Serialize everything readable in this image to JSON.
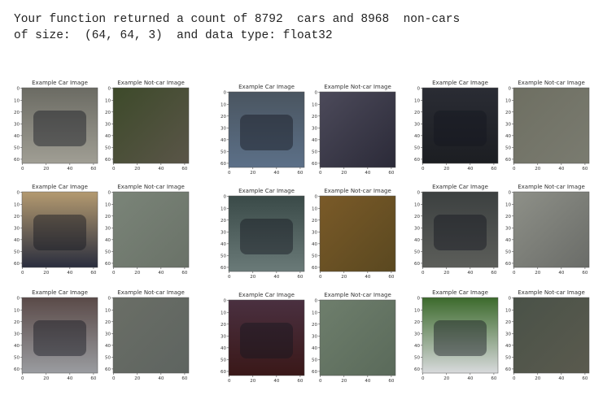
{
  "output": {
    "lines": [
      "Your function returned a count of 8792  cars and 8968  non-cars",
      "of size:  (64, 64, 3)  and data type: float32"
    ]
  },
  "axes": {
    "yticks": [
      "0",
      "10",
      "20",
      "30",
      "40",
      "50",
      "60"
    ],
    "xticks": [
      "0",
      "20",
      "40",
      "60"
    ]
  },
  "panels": [
    {
      "title": "Example Car Image"
    },
    {
      "title": "Example Not-car Image"
    },
    {
      "title": "Example Car Image"
    },
    {
      "title": "Example Not-car Image"
    },
    {
      "title": "Example Car Image"
    },
    {
      "title": "Example Not-car Image"
    },
    {
      "title": "Example Car Image"
    },
    {
      "title": "Example Not-car Image"
    },
    {
      "title": "Example Car Image"
    },
    {
      "title": "Example Not-car Image"
    },
    {
      "title": "Example Car Image"
    },
    {
      "title": "Example Not-car Image"
    },
    {
      "title": "Example Car Image"
    },
    {
      "title": "Example Not-car Image"
    },
    {
      "title": "Example Car Image"
    },
    {
      "title": "Example Not-car Image"
    },
    {
      "title": "Example Car Image"
    },
    {
      "title": "Example Not-car Image"
    }
  ]
}
